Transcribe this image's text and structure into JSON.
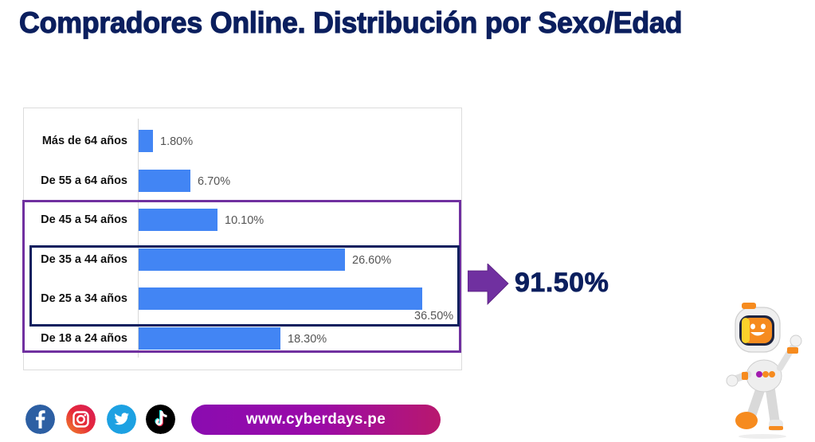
{
  "header": {
    "title": "Compradores Online. Distribución por Sexo/Edad"
  },
  "chart_data": {
    "type": "bar",
    "orientation": "horizontal",
    "title": "",
    "xlabel": "",
    "ylabel": "",
    "categories": [
      "Más de 64 años",
      "De 55 a 64 años",
      "De 45 a 54 años",
      "De 35 a 44 años",
      "De 25 a 34 años",
      "De 18 a 24 años"
    ],
    "values": [
      1.8,
      6.7,
      10.1,
      26.6,
      36.5,
      18.3
    ],
    "value_labels": [
      "1.80%",
      "6.70%",
      "10.10%",
      "26.60%",
      "36.50%",
      "18.30%"
    ],
    "bar_color": "#4285f4",
    "grid": false,
    "legend": "none",
    "annotations": [
      {
        "type": "box",
        "color": "#7030a0",
        "groups": [
          "De 45 a 54 años",
          "De 35 a 44 años",
          "De 25 a 34 años",
          "De 18 a 24 años"
        ]
      },
      {
        "type": "box",
        "color": "#0b1f5e",
        "groups": [
          "De 35 a 44 años",
          "De 25 a 34 años"
        ]
      },
      {
        "type": "arrow-callout",
        "color": "#7030a0",
        "text": "91.50%"
      }
    ]
  },
  "summary": {
    "value": "91.50%"
  },
  "footer": {
    "social": [
      {
        "name": "facebook",
        "color": "#2d5fa3"
      },
      {
        "name": "instagram",
        "color": "#e6283a"
      },
      {
        "name": "twitter",
        "color": "#1da1e2"
      },
      {
        "name": "tiktok",
        "color": "#000000"
      }
    ],
    "website": "www.cyberdays.pe"
  },
  "colors": {
    "title": "#0b1f5e",
    "accent_purple": "#7030a0",
    "bar": "#4285f4"
  }
}
